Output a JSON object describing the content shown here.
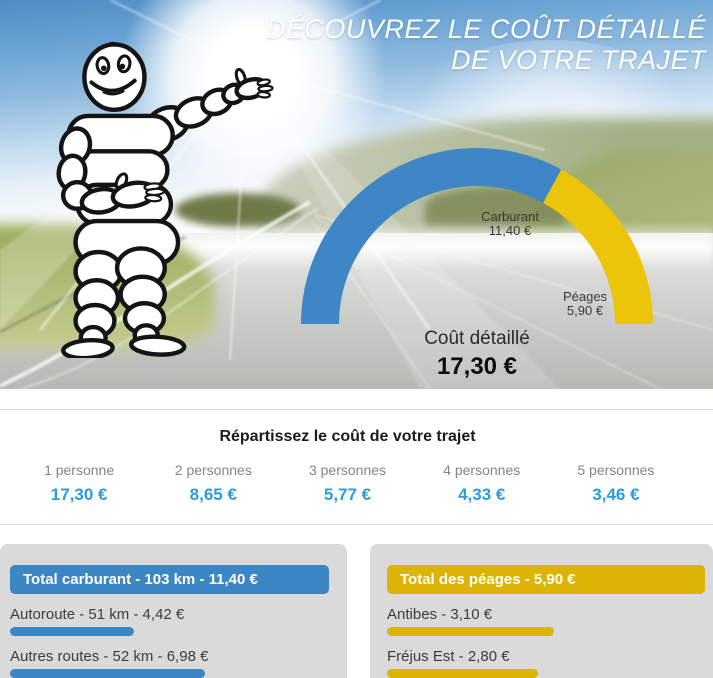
{
  "hero": {
    "title_line1": "DÉCOUVREZ LE COÛT DÉTAILLÉ",
    "title_line2": "DE VOTRE TRAJET",
    "illustration": "michelin-man"
  },
  "gauge": {
    "center_label": "Coût détaillé",
    "center_value": "17,30 €",
    "segments": [
      {
        "label": "Carburant",
        "value_text": "11,40 €",
        "amount": 11.4,
        "color": "#3e86c5"
      },
      {
        "label": "Péages",
        "value_text": "5,90 €",
        "amount": 5.9,
        "color": "#ecc409"
      }
    ]
  },
  "split": {
    "title": "Répartissez le coût de votre trajet",
    "value_color": "#2d9bdc",
    "options": [
      {
        "label": "1 personne",
        "value": "17,30 €"
      },
      {
        "label": "2 personnes",
        "value": "8,65 €"
      },
      {
        "label": "3 personnes",
        "value": "5,77 €"
      },
      {
        "label": "4 personnes",
        "value": "4,33 €"
      },
      {
        "label": "5 personnes",
        "value": "3,46 €"
      }
    ]
  },
  "fuel_panel": {
    "header": "Total carburant - 103 km - 11,40 €",
    "total": 11.4,
    "color": "#3d86c4",
    "rows": [
      {
        "label": "Autoroute - 51 km - 4,42 €",
        "amount": 4.42
      },
      {
        "label": "Autres routes - 52 km - 6,98 €",
        "amount": 6.98
      }
    ]
  },
  "toll_panel": {
    "header": "Total des péages - 5,90 €",
    "total": 5.9,
    "color": "#dcb405",
    "rows": [
      {
        "label": "Antibes - 3,10 €",
        "amount": 3.1
      },
      {
        "label": "Fréjus Est - 2,80 €",
        "amount": 2.8
      }
    ]
  },
  "chart_data": [
    {
      "type": "pie",
      "style": "half-donut-gauge",
      "labels": [
        "Carburant",
        "Péages"
      ],
      "values": [
        11.4,
        5.9
      ],
      "colors": [
        "#3e86c5",
        "#ecc409"
      ],
      "title": "Coût détaillé",
      "total": 17.3,
      "total_text": "17,30 €",
      "legend_position": "inside-arc"
    },
    {
      "type": "bar",
      "orientation": "horizontal",
      "title": "Total carburant - 103 km - 11,40 €",
      "categories": [
        "Autoroute - 51 km",
        "Autres routes - 52 km"
      ],
      "values": [
        4.42,
        6.98
      ],
      "unit": "€",
      "color": "#3d86c4",
      "xlim": [
        0,
        11.4
      ]
    },
    {
      "type": "bar",
      "orientation": "horizontal",
      "title": "Total des péages - 5,90 €",
      "categories": [
        "Antibes",
        "Fréjus Est"
      ],
      "values": [
        3.1,
        2.8
      ],
      "unit": "€",
      "color": "#dcb405",
      "xlim": [
        0,
        5.9
      ]
    }
  ]
}
